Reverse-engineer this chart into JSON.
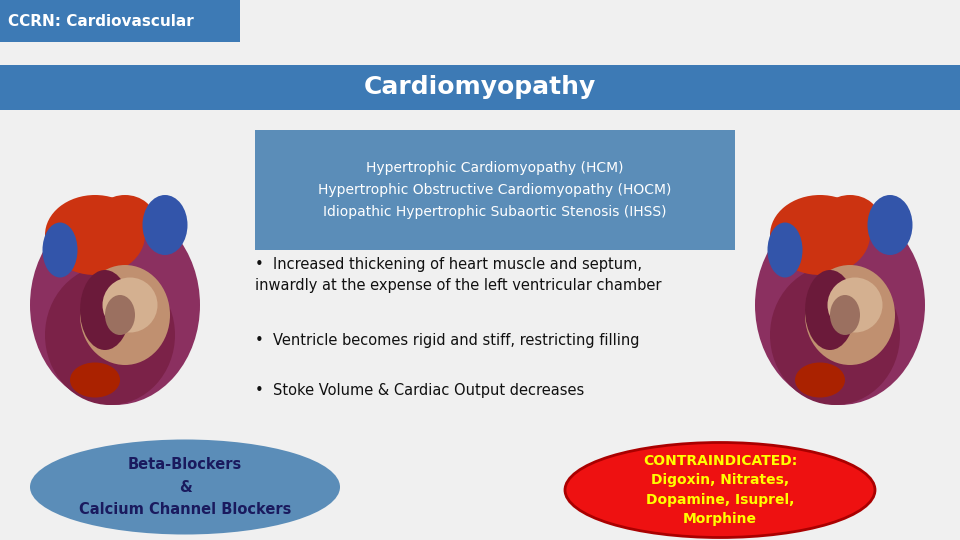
{
  "background_color": "#f0f0f0",
  "top_bar_color": "#3d7ab5",
  "top_bar_text": "CCRN: Cardiovascular",
  "top_bar_text_color": "#ffffff",
  "title_bar_color": "#3d7ab5",
  "title_text": "Cardiomyopathy",
  "title_text_color": "#ffffff",
  "subtitle_box_color": "#5b8db8",
  "subtitle_lines": [
    "Hypertrophic Cardiomyopathy (HCM)",
    "Hypertrophic Obstructive Cardiomyopathy (HOCM)",
    "Idiopathic Hypertrophic Subaortic Stenosis (IHSS)"
  ],
  "subtitle_text_color": "#ffffff",
  "bullet_points": [
    "Increased thickening of heart muscle and septum,\ninwardly at the expense of the left ventricular chamber",
    "Ventricle becomes rigid and stiff, restricting filling",
    "Stoke Volume & Cardiac Output decreases"
  ],
  "bullet_text_color": "#111111",
  "blue_ellipse_color": "#5b8db8",
  "blue_ellipse_text": "Beta-Blockers\n&\nCalcium Channel Blockers",
  "blue_ellipse_text_color": "#1a1a5e",
  "red_ellipse_color": "#ee1111",
  "red_ellipse_text": "CONTRAINDICATED:\nDigoxin, Nitrates,\nDopamine, Isuprel,\nMorphine",
  "red_ellipse_text_color": "#ffff00",
  "heart_colors": {
    "outer_body": "#8B3060",
    "red_top": "#CC3311",
    "blue_vessel": "#3355AA",
    "inner_chamber": "#C09070",
    "lower_red": "#AA2200"
  }
}
